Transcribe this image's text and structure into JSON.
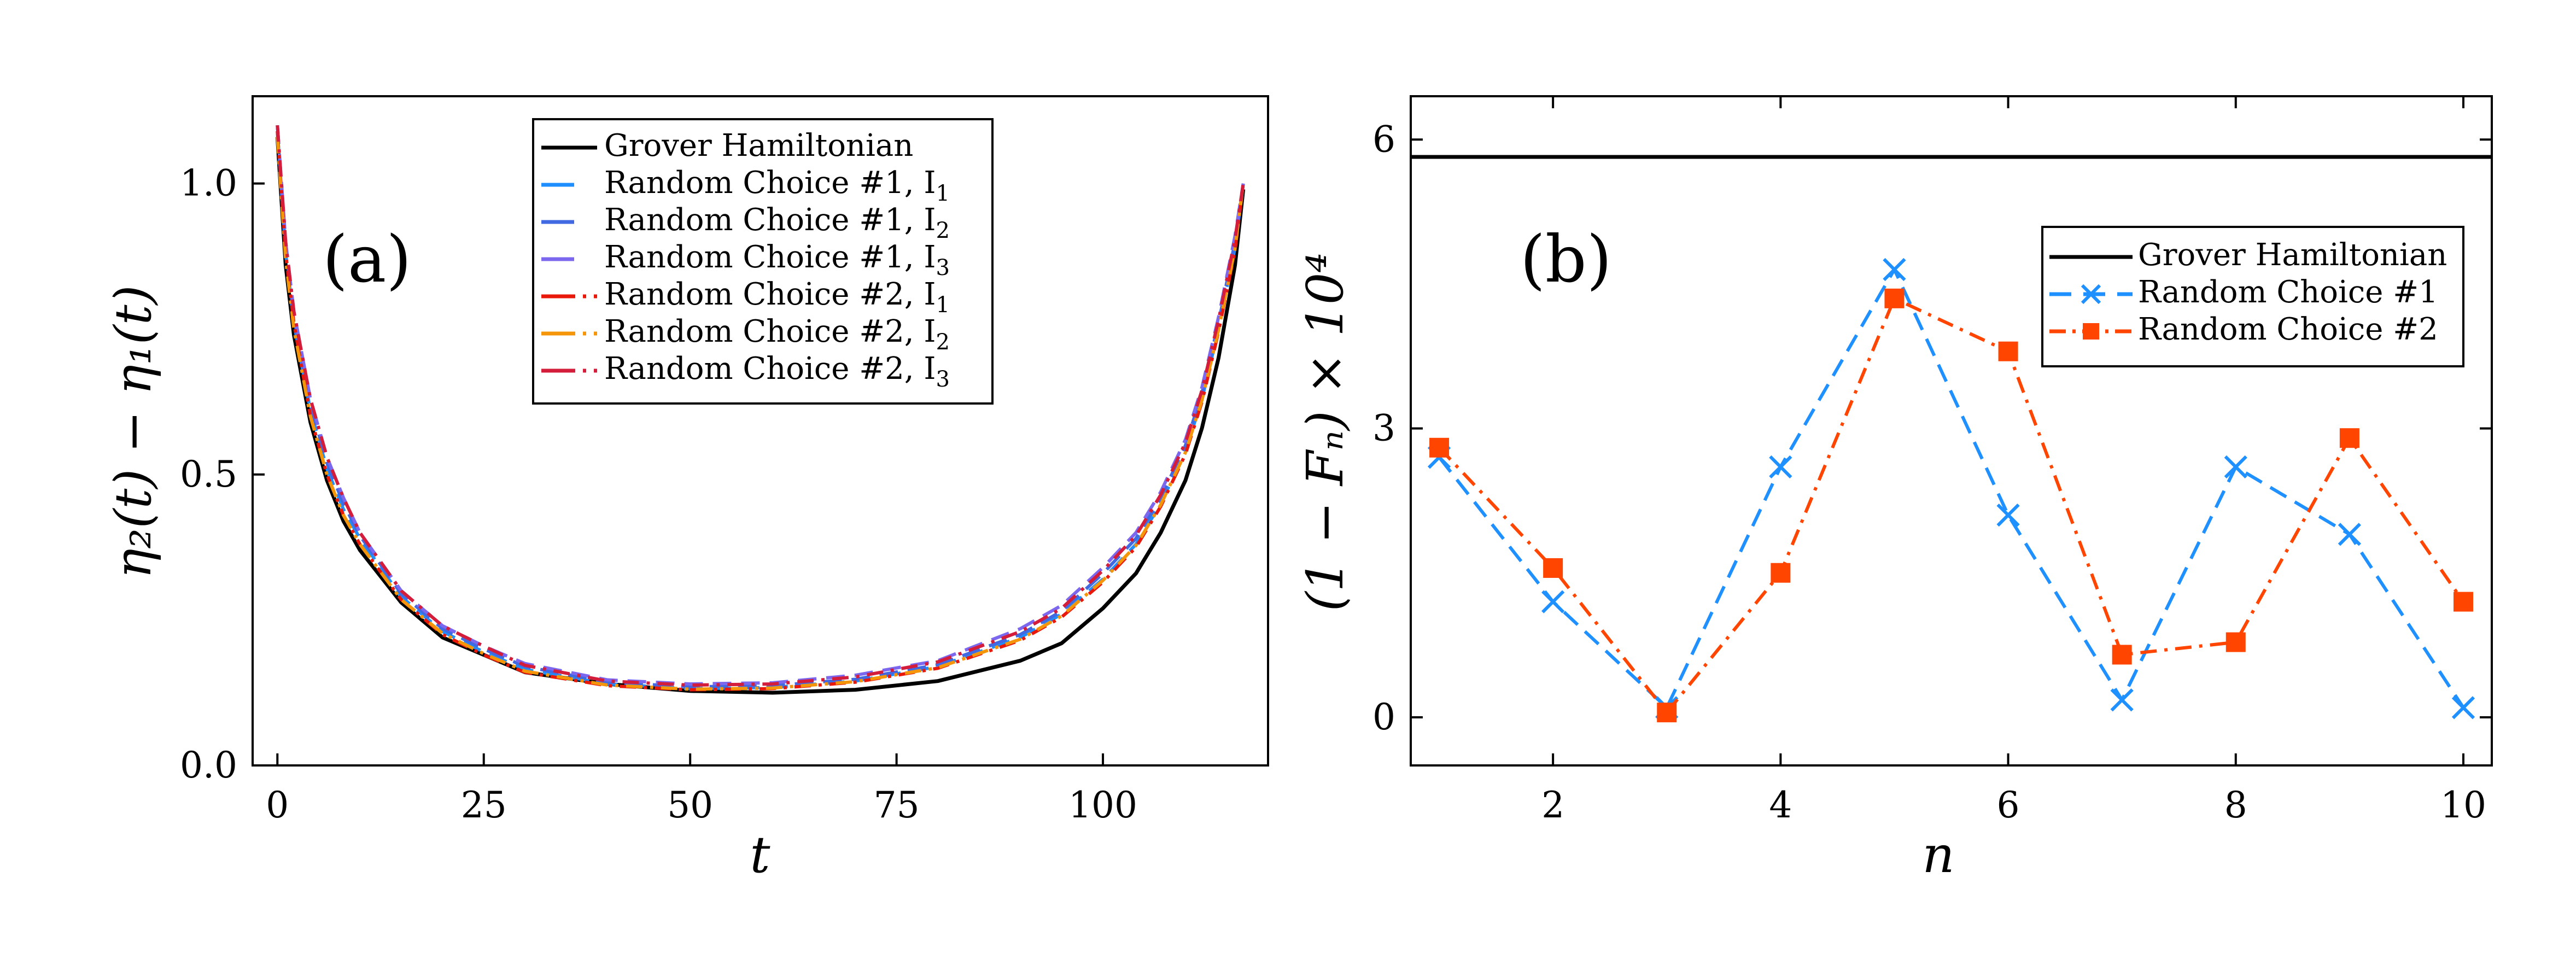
{
  "colors": {
    "black": "#000000",
    "blue1": "#1f8fff",
    "blue2": "#4169e1",
    "purple": "#7b68ee",
    "red": "#e8190a",
    "orange": "#f5960a",
    "crimson": "#d41d3a",
    "bBlue": "#1e90ff",
    "bRed": "#ff4500"
  },
  "chart_data": [
    {
      "type": "line",
      "panel_label": "(a)",
      "xlabel": "t",
      "ylabel": "η₂(t) − η₁(t)",
      "xlim": [
        -3,
        120
      ],
      "ylim": [
        0.0,
        1.15
      ],
      "xticks": [
        0,
        25,
        50,
        75,
        100
      ],
      "yticks": [
        0.0,
        0.5,
        1.0
      ],
      "xtick_labels": [
        "0",
        "25",
        "50",
        "75",
        "100"
      ],
      "ytick_labels": [
        "0.0",
        "0.5",
        "1.0"
      ],
      "legend_position": "top-right",
      "series": [
        {
          "name": "Grover Hamiltonian",
          "label_main": "Grover Hamiltonian",
          "label_sub": "",
          "style": "solid",
          "color_key": "black",
          "x": [
            0,
            1,
            2,
            4,
            6,
            8,
            10,
            15,
            20,
            25,
            30,
            40,
            50,
            60,
            70,
            80,
            90,
            95,
            100,
            104,
            107,
            110,
            112,
            114,
            116,
            117
          ],
          "y": [
            1.08,
            0.86,
            0.74,
            0.59,
            0.49,
            0.42,
            0.37,
            0.28,
            0.22,
            0.19,
            0.16,
            0.14,
            0.128,
            0.125,
            0.13,
            0.145,
            0.18,
            0.21,
            0.27,
            0.33,
            0.4,
            0.49,
            0.58,
            0.7,
            0.86,
            0.99
          ]
        },
        {
          "name": "Random Choice #1, I1",
          "label_main": "Random Choice #1, I",
          "label_sub": "1",
          "style": "dash",
          "color_key": "blue1",
          "x": [
            0,
            1,
            2,
            4,
            6,
            8,
            10,
            15,
            20,
            25,
            30,
            40,
            50,
            60,
            70,
            80,
            90,
            95,
            100,
            104,
            107,
            110,
            112,
            114,
            116,
            117
          ],
          "y": [
            1.09,
            0.88,
            0.76,
            0.61,
            0.51,
            0.44,
            0.39,
            0.29,
            0.23,
            0.195,
            0.165,
            0.14,
            0.132,
            0.134,
            0.145,
            0.17,
            0.22,
            0.26,
            0.32,
            0.38,
            0.45,
            0.54,
            0.63,
            0.75,
            0.89,
            1.0
          ]
        },
        {
          "name": "Random Choice #1, I2",
          "label_main": "Random Choice #1, I",
          "label_sub": "2",
          "style": "dash",
          "color_key": "blue2",
          "x": [
            0,
            1,
            2,
            4,
            6,
            8,
            10,
            15,
            20,
            25,
            30,
            40,
            50,
            60,
            70,
            80,
            90,
            95,
            100,
            104,
            107,
            110,
            112,
            114,
            116,
            117
          ],
          "y": [
            1.1,
            0.89,
            0.77,
            0.62,
            0.52,
            0.45,
            0.395,
            0.295,
            0.235,
            0.2,
            0.17,
            0.143,
            0.135,
            0.137,
            0.148,
            0.173,
            0.225,
            0.265,
            0.33,
            0.39,
            0.46,
            0.55,
            0.64,
            0.76,
            0.9,
            1.0
          ]
        },
        {
          "name": "Random Choice #1, I3",
          "label_main": "Random Choice #1, I",
          "label_sub": "3",
          "style": "dash",
          "color_key": "purple",
          "x": [
            0,
            1,
            2,
            4,
            6,
            8,
            10,
            15,
            20,
            25,
            30,
            40,
            50,
            60,
            70,
            80,
            90,
            95,
            100,
            104,
            107,
            110,
            112,
            114,
            116,
            117
          ],
          "y": [
            1.1,
            0.9,
            0.78,
            0.63,
            0.53,
            0.46,
            0.4,
            0.3,
            0.24,
            0.205,
            0.175,
            0.147,
            0.14,
            0.142,
            0.155,
            0.18,
            0.235,
            0.275,
            0.34,
            0.4,
            0.47,
            0.56,
            0.65,
            0.77,
            0.91,
            1.0
          ]
        },
        {
          "name": "Random Choice #2, I1",
          "label_main": "Random Choice #2, I",
          "label_sub": "1",
          "style": "dashdot",
          "color_key": "red",
          "x": [
            0,
            1,
            2,
            4,
            6,
            8,
            10,
            15,
            20,
            25,
            30,
            40,
            50,
            60,
            70,
            80,
            90,
            95,
            100,
            104,
            107,
            110,
            112,
            114,
            116,
            117
          ],
          "y": [
            1.09,
            0.88,
            0.76,
            0.6,
            0.5,
            0.43,
            0.38,
            0.285,
            0.225,
            0.19,
            0.16,
            0.137,
            0.13,
            0.132,
            0.143,
            0.167,
            0.215,
            0.255,
            0.315,
            0.375,
            0.445,
            0.535,
            0.625,
            0.745,
            0.885,
            1.0
          ]
        },
        {
          "name": "Random Choice #2, I2",
          "label_main": "Random Choice #2, I",
          "label_sub": "2",
          "style": "dashdot",
          "color_key": "orange",
          "x": [
            0,
            1,
            2,
            4,
            6,
            8,
            10,
            15,
            20,
            25,
            30,
            40,
            50,
            60,
            70,
            80,
            90,
            95,
            100,
            104,
            107,
            110,
            112,
            114,
            116,
            117
          ],
          "y": [
            1.08,
            0.87,
            0.75,
            0.6,
            0.5,
            0.43,
            0.38,
            0.285,
            0.227,
            0.192,
            0.162,
            0.138,
            0.131,
            0.133,
            0.144,
            0.168,
            0.217,
            0.257,
            0.318,
            0.378,
            0.448,
            0.538,
            0.628,
            0.748,
            0.888,
            1.0
          ]
        },
        {
          "name": "Random Choice #2, I3",
          "label_main": "Random Choice #2, I",
          "label_sub": "3",
          "style": "dashdot",
          "color_key": "crimson",
          "x": [
            0,
            1,
            2,
            4,
            6,
            8,
            10,
            15,
            20,
            25,
            30,
            40,
            50,
            60,
            70,
            80,
            90,
            95,
            100,
            104,
            107,
            110,
            112,
            114,
            116,
            117
          ],
          "y": [
            1.1,
            0.9,
            0.78,
            0.63,
            0.53,
            0.46,
            0.4,
            0.3,
            0.24,
            0.205,
            0.172,
            0.145,
            0.138,
            0.14,
            0.152,
            0.178,
            0.23,
            0.27,
            0.335,
            0.395,
            0.465,
            0.555,
            0.645,
            0.765,
            0.905,
            1.0
          ]
        }
      ]
    },
    {
      "type": "line",
      "panel_label": "(b)",
      "xlabel": "n",
      "ylabel": "(1 − Fₙ) × 10⁴",
      "xlim": [
        0.75,
        10.25
      ],
      "ylim": [
        -0.5,
        6.45
      ],
      "xticks": [
        2,
        4,
        6,
        8,
        10
      ],
      "yticks": [
        0,
        3,
        6
      ],
      "xtick_labels": [
        "2",
        "4",
        "6",
        "8",
        "10"
      ],
      "ytick_labels": [
        "0",
        "3",
        "6"
      ],
      "legend_position": "top-right",
      "series": [
        {
          "name": "Grover Hamiltonian",
          "style": "solid",
          "marker": "none",
          "color_key": "black",
          "x": [
            0.75,
            10.25
          ],
          "y": [
            5.82,
            5.82
          ]
        },
        {
          "name": "Random Choice #1",
          "style": "dash",
          "marker": "x",
          "color_key": "bBlue",
          "x": [
            1,
            2,
            3,
            4,
            5,
            6,
            7,
            8,
            9,
            10
          ],
          "y": [
            2.7,
            1.2,
            0.1,
            2.6,
            4.65,
            2.1,
            0.18,
            2.6,
            1.9,
            0.1
          ]
        },
        {
          "name": "Random Choice #2",
          "style": "dashdot",
          "marker": "square",
          "color_key": "bRed",
          "x": [
            1,
            2,
            3,
            4,
            5,
            6,
            7,
            8,
            9,
            10
          ],
          "y": [
            2.8,
            1.55,
            0.05,
            1.5,
            4.35,
            3.8,
            0.65,
            0.78,
            2.9,
            1.2
          ]
        }
      ]
    }
  ]
}
